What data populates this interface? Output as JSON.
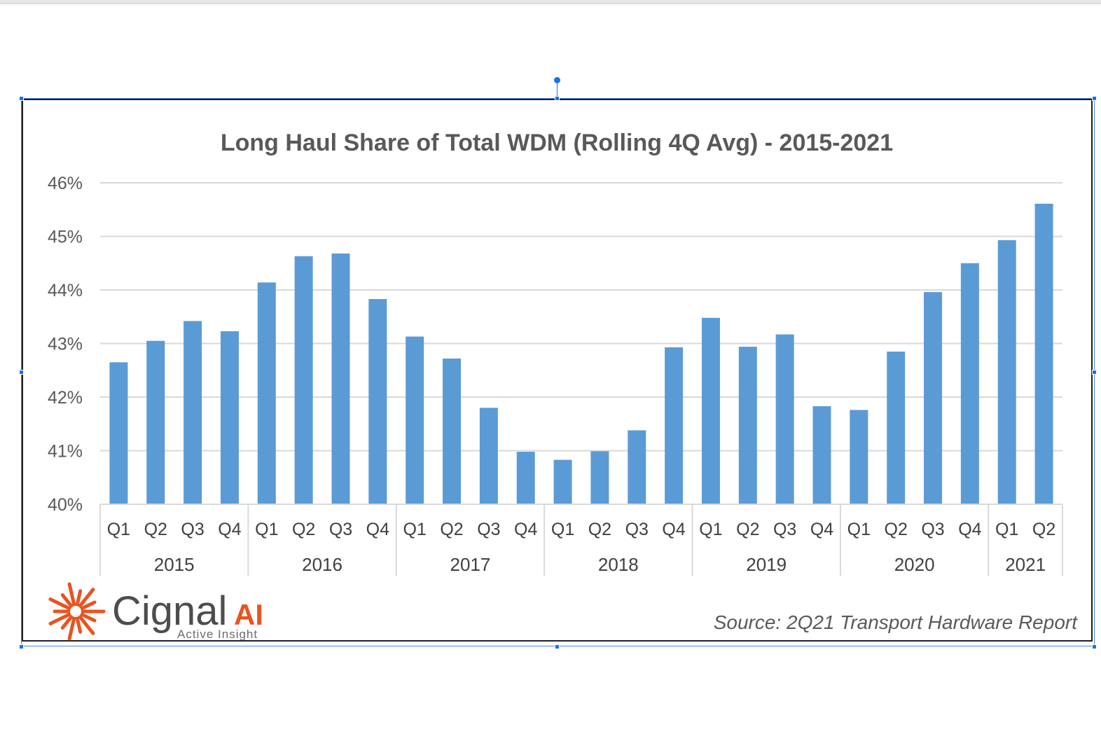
{
  "chart_data": {
    "type": "bar",
    "title": "Long Haul Share of Total WDM (Rolling 4Q Avg) - 2015-2021",
    "xlabel": "",
    "ylabel": "",
    "ylim": [
      40,
      46
    ],
    "yticks": [
      "40%",
      "41%",
      "42%",
      "43%",
      "44%",
      "45%",
      "46%"
    ],
    "years": [
      {
        "label": "2015",
        "quarters": 4
      },
      {
        "label": "2016",
        "quarters": 4
      },
      {
        "label": "2017",
        "quarters": 4
      },
      {
        "label": "2018",
        "quarters": 4
      },
      {
        "label": "2019",
        "quarters": 4
      },
      {
        "label": "2020",
        "quarters": 4
      },
      {
        "label": "2021",
        "quarters": 2
      }
    ],
    "categories": [
      "Q1",
      "Q2",
      "Q3",
      "Q4",
      "Q1",
      "Q2",
      "Q3",
      "Q4",
      "Q1",
      "Q2",
      "Q3",
      "Q4",
      "Q1",
      "Q2",
      "Q3",
      "Q4",
      "Q1",
      "Q2",
      "Q3",
      "Q4",
      "Q1",
      "Q2",
      "Q3",
      "Q4",
      "Q1",
      "Q2"
    ],
    "values": [
      42.65,
      43.05,
      43.42,
      43.23,
      44.14,
      44.63,
      44.68,
      43.83,
      43.13,
      42.72,
      41.8,
      40.98,
      40.83,
      40.99,
      41.38,
      42.93,
      43.48,
      42.94,
      43.17,
      41.83,
      41.76,
      42.85,
      43.96,
      44.5,
      44.93,
      45.61
    ],
    "bar_color": "#5b9bd5",
    "grid": true,
    "legend": "none"
  },
  "footer": {
    "source": "Source: 2Q21 Transport Hardware Report"
  },
  "logo": {
    "brand": "Cignal",
    "brand_suffix": "AI",
    "tagline": "Active Insight",
    "accent_color": "#e8541f"
  }
}
